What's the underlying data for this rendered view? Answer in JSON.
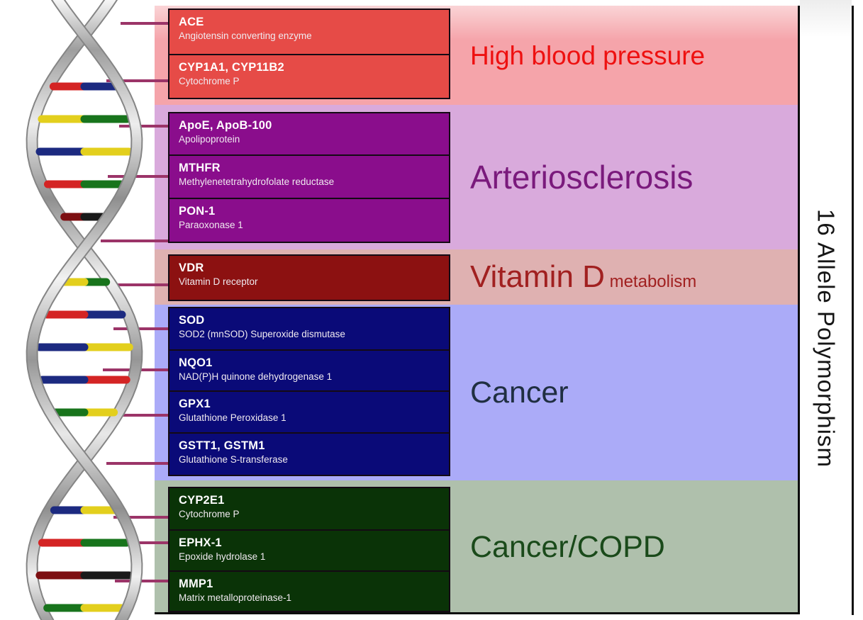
{
  "side_label": "16 Allele Polymorphism",
  "icons": {
    "dna": "dna-helix-illustration"
  },
  "sections": [
    {
      "id": "high-blood-pressure",
      "label": "High blood pressure",
      "sublabel": "",
      "colors": {
        "band": "#F5A4AA",
        "band_top": "#FAD4D6",
        "box": "#E64B47",
        "label": "#EE1010"
      },
      "genes": [
        {
          "name": "ACE",
          "desc": "Angiotensin converting enzyme"
        },
        {
          "name": "CYP1A1, CYP11B2",
          "desc": "Cytochrome P"
        }
      ]
    },
    {
      "id": "arteriosclerosis",
      "label": "Arteriosclerosis",
      "sublabel": "",
      "colors": {
        "band": "#D9AADC",
        "band_top": "#D9AADC",
        "box": "#8A0D8C",
        "label": "#7A1A7C"
      },
      "genes": [
        {
          "name": "ApoE, ApoB-100",
          "desc": "Apolipoprotein"
        },
        {
          "name": "MTHFR",
          "desc": "Methylenetetrahydrofolate reductase"
        },
        {
          "name": "PON-1",
          "desc": "Paraoxonase 1"
        }
      ]
    },
    {
      "id": "vitamin-d",
      "label": "Vitamin D",
      "sublabel": "metabolism",
      "colors": {
        "band": "#DFB1B1",
        "band_top": "#DFB1B1",
        "box": "#8C1111",
        "label": "#A12020"
      },
      "genes": [
        {
          "name": "VDR",
          "desc": "Vitamin D receptor"
        }
      ]
    },
    {
      "id": "cancer",
      "label": "Cancer",
      "sublabel": "",
      "colors": {
        "band": "#ABABF8",
        "band_top": "#ABABF8",
        "box": "#0A0A78",
        "label": "#202F42"
      },
      "genes": [
        {
          "name": "SOD",
          "desc": "SOD2 (mnSOD) Superoxide dismutase"
        },
        {
          "name": "NQO1",
          "desc": "NAD(P)H quinone dehydrogenase 1"
        },
        {
          "name": "GPX1",
          "desc": "Glutathione Peroxidase 1"
        },
        {
          "name": "GSTT1, GSTM1",
          "desc": "Glutathione S-transferase"
        }
      ]
    },
    {
      "id": "cancer-copd",
      "label": "Cancer/COPD",
      "sublabel": "",
      "colors": {
        "band": "#AFC0AC",
        "band_top": "#AFC0AC",
        "box": "#0A3307",
        "label": "#1A4A1A"
      },
      "genes": [
        {
          "name": "CYP2E1",
          "desc": "Cytochrome P"
        },
        {
          "name": "EPHX-1",
          "desc": "Epoxide hydrolase 1"
        },
        {
          "name": "MMP1",
          "desc": "Matrix metalloproteinase-1"
        }
      ]
    }
  ]
}
